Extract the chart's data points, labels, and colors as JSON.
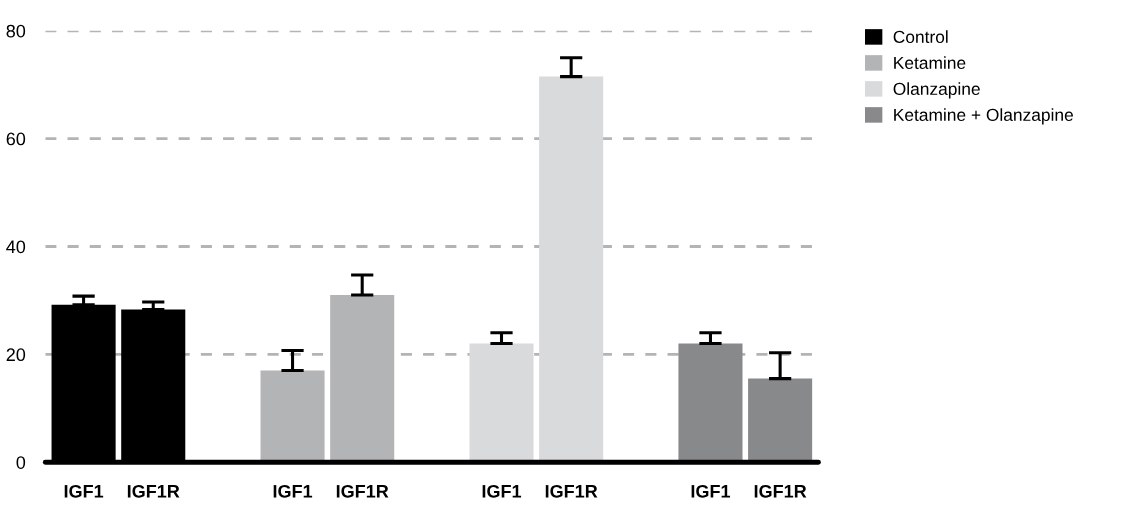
{
  "chart_data": {
    "type": "bar",
    "categories": [
      "IGF1",
      "IGF1R",
      null,
      "IGF1",
      "IGF1R",
      null,
      "IGF1",
      "IGF1R",
      null,
      "IGF1",
      "IGF1R"
    ],
    "series": [
      {
        "name": "Control",
        "color": "#000000",
        "values": [
          29.2,
          28.3,
          null,
          null,
          null,
          null,
          null,
          null,
          null,
          null,
          null
        ],
        "errors": [
          [
            29.2,
            30.8
          ],
          [
            28.3,
            29.7
          ],
          null,
          null,
          null,
          null,
          null,
          null,
          null,
          null,
          null
        ]
      },
      {
        "name": "Ketamine",
        "color": "#b3b4b6",
        "values": [
          null,
          null,
          null,
          17.0,
          31.0,
          null,
          null,
          null,
          null,
          null,
          null
        ],
        "errors": [
          null,
          null,
          null,
          [
            17.0,
            20.7
          ],
          [
            31.0,
            34.7
          ],
          null,
          null,
          null,
          null,
          null,
          null
        ]
      },
      {
        "name": "Olanzapine",
        "color": "#d9dadc",
        "values": [
          null,
          null,
          null,
          null,
          null,
          null,
          22.0,
          71.5,
          null,
          null,
          null
        ],
        "errors": [
          null,
          null,
          null,
          null,
          null,
          null,
          [
            22.0,
            24.0
          ],
          [
            71.5,
            75.0
          ],
          null,
          null,
          null
        ]
      },
      {
        "name": "Ketamine + Olanzapine",
        "color": "#88898b",
        "values": [
          null,
          null,
          null,
          null,
          null,
          null,
          null,
          null,
          null,
          22.0,
          15.5
        ],
        "errors": [
          null,
          null,
          null,
          null,
          null,
          null,
          null,
          null,
          null,
          [
            22.0,
            24.0
          ],
          [
            15.5,
            20.3
          ]
        ]
      }
    ],
    "ylim": [
      0,
      80
    ],
    "yticks": [
      0,
      20,
      40,
      60,
      80
    ],
    "grid": "y",
    "legend": "top right"
  }
}
